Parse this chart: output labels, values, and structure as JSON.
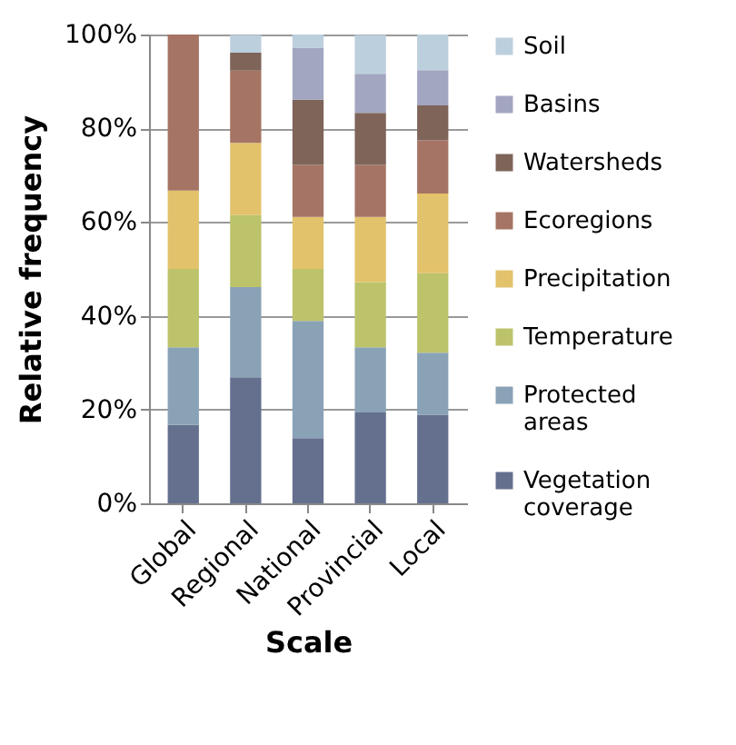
{
  "chart_data": {
    "type": "bar",
    "stacked": true,
    "xlabel": "Scale",
    "ylabel": "Relative frequency",
    "categories": [
      "Global",
      "Regional",
      "National",
      "Provincial",
      "Local"
    ],
    "ylim": [
      0,
      100
    ],
    "yticks": [
      {
        "value": 0,
        "label": "0%"
      },
      {
        "value": 20,
        "label": "20%"
      },
      {
        "value": 40,
        "label": "40%"
      },
      {
        "value": 60,
        "label": "60%"
      },
      {
        "value": 80,
        "label": "80%"
      },
      {
        "value": 100,
        "label": "100%"
      }
    ],
    "grid": "y",
    "legend": "right",
    "series": [
      {
        "name": "Vegetation coverage",
        "color": "#65708f",
        "values": [
          16.7,
          26.9,
          13.9,
          19.4,
          18.9
        ]
      },
      {
        "name": "Protected areas",
        "color": "#8aa2b6",
        "values": [
          16.6,
          19.2,
          25,
          13.9,
          13.2
        ]
      },
      {
        "name": "Temperature",
        "color": "#bcc36b",
        "values": [
          16.7,
          15.4,
          11.1,
          13.9,
          17
        ]
      },
      {
        "name": "Precipitation",
        "color": "#e2c26b",
        "values": [
          16.7,
          15.4,
          11.1,
          13.9,
          17
        ]
      },
      {
        "name": "Ecoregions",
        "color": "#a67464",
        "values": [
          33.3,
          15.4,
          11.1,
          11.1,
          11.3
        ]
      },
      {
        "name": "Watersheds",
        "color": "#7e6459",
        "values": [
          0,
          3.8,
          13.9,
          11.1,
          7.5
        ]
      },
      {
        "name": "Basins",
        "color": "#a3a6c0",
        "values": [
          0,
          0,
          11.1,
          8.3,
          7.5
        ]
      },
      {
        "name": "Soil",
        "color": "#bccfdd",
        "values": [
          0,
          3.8,
          2.8,
          8.3,
          7.6
        ]
      }
    ]
  }
}
